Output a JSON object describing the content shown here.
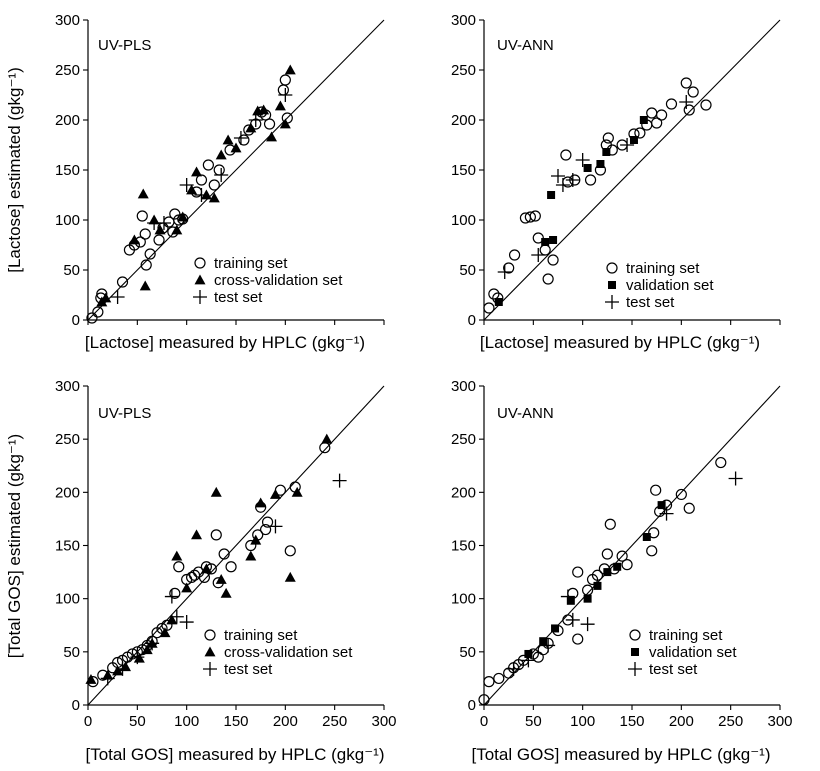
{
  "chart_data": [
    {
      "type": "scatter",
      "title": "UV-PLS",
      "xlabel": "[Lactose] measured by HPLC (gkg⁻¹)",
      "ylabel": "[Lactose]  estimated  (gkg⁻¹)",
      "xlim": [
        0,
        300
      ],
      "ylim": [
        0,
        300
      ],
      "xticks": [],
      "yticks": [
        "0",
        "50",
        "100",
        "150",
        "200",
        "250",
        "300"
      ],
      "grid": false,
      "legend_position": "bottom-right",
      "identity_line": true,
      "series": [
        {
          "name": "training set",
          "marker": "open-circle",
          "points": [
            [
              4,
              2
            ],
            [
              10,
              8
            ],
            [
              13,
              22
            ],
            [
              14,
              26
            ],
            [
              35,
              38
            ],
            [
              42,
              70
            ],
            [
              47,
              75
            ],
            [
              53,
              78
            ],
            [
              55,
              104
            ],
            [
              58,
              86
            ],
            [
              59,
              55
            ],
            [
              63,
              66
            ],
            [
              72,
              80
            ],
            [
              76,
              92
            ],
            [
              82,
              98
            ],
            [
              86,
              88
            ],
            [
              88,
              106
            ],
            [
              92,
              100
            ],
            [
              96,
              101
            ],
            [
              110,
              128
            ],
            [
              115,
              140
            ],
            [
              122,
              155
            ],
            [
              128,
              135
            ],
            [
              133,
              150
            ],
            [
              144,
              170
            ],
            [
              158,
              180
            ],
            [
              163,
              190
            ],
            [
              170,
              196
            ],
            [
              176,
              208
            ],
            [
              180,
              205
            ],
            [
              184,
              196
            ],
            [
              200,
              240
            ],
            [
              202,
              202
            ],
            [
              198,
              230
            ]
          ]
        },
        {
          "name": "cross-validation set",
          "marker": "filled-triangle",
          "points": [
            [
              14,
              18
            ],
            [
              18,
              22
            ],
            [
              47,
              80
            ],
            [
              56,
              126
            ],
            [
              58,
              34
            ],
            [
              67,
              100
            ],
            [
              73,
              90
            ],
            [
              90,
              90
            ],
            [
              96,
              103
            ],
            [
              105,
              130
            ],
            [
              110,
              148
            ],
            [
              120,
              125
            ],
            [
              128,
              122
            ],
            [
              135,
              165
            ],
            [
              142,
              180
            ],
            [
              150,
              172
            ],
            [
              165,
              192
            ],
            [
              172,
              209
            ],
            [
              178,
              210
            ],
            [
              186,
              183
            ],
            [
              195,
              214
            ],
            [
              200,
              196
            ],
            [
              205,
              250
            ]
          ]
        },
        {
          "name": "test set",
          "marker": "plus",
          "points": [
            [
              30,
              23
            ],
            [
              67,
              97
            ],
            [
              77,
              97
            ],
            [
              100,
              135
            ],
            [
              115,
              125
            ],
            [
              135,
              145
            ],
            [
              155,
              182
            ],
            [
              170,
              200
            ],
            [
              200,
              225
            ]
          ]
        }
      ]
    },
    {
      "type": "scatter",
      "title": "UV-ANN",
      "xlabel": "[Lactose] measured by HPLC (gkg⁻¹)",
      "ylabel": "",
      "xlim": [
        0,
        300
      ],
      "ylim": [
        0,
        300
      ],
      "xticks": [],
      "yticks": [
        "0",
        "50",
        "100",
        "150",
        "200",
        "250",
        "300"
      ],
      "grid": false,
      "legend_position": "bottom-right",
      "identity_line": true,
      "series": [
        {
          "name": "training set",
          "marker": "open-circle",
          "points": [
            [
              5,
              12
            ],
            [
              10,
              26
            ],
            [
              14,
              22
            ],
            [
              25,
              52
            ],
            [
              31,
              65
            ],
            [
              42,
              102
            ],
            [
              47,
              103
            ],
            [
              52,
              104
            ],
            [
              55,
              82
            ],
            [
              62,
              70
            ],
            [
              65,
              41
            ],
            [
              70,
              60
            ],
            [
              83,
              165
            ],
            [
              85,
              138
            ],
            [
              92,
              140
            ],
            [
              108,
              140
            ],
            [
              118,
              150
            ],
            [
              124,
              175
            ],
            [
              126,
              182
            ],
            [
              130,
              170
            ],
            [
              140,
              175
            ],
            [
              152,
              186
            ],
            [
              158,
              187
            ],
            [
              165,
              195
            ],
            [
              170,
              207
            ],
            [
              175,
              197
            ],
            [
              180,
              205
            ],
            [
              190,
              216
            ],
            [
              205,
              237
            ],
            [
              208,
              210
            ],
            [
              212,
              228
            ],
            [
              225,
              215
            ]
          ]
        },
        {
          "name": "validation set",
          "marker": "filled-square",
          "points": [
            [
              15,
              18
            ],
            [
              62,
              78
            ],
            [
              68,
              125
            ],
            [
              70,
              80
            ],
            [
              105,
              152
            ],
            [
              118,
              156
            ],
            [
              124,
              168
            ],
            [
              152,
              180
            ],
            [
              162,
              200
            ]
          ]
        },
        {
          "name": "test set",
          "marker": "plus",
          "points": [
            [
              21,
              48
            ],
            [
              55,
              65
            ],
            [
              75,
              144
            ],
            [
              80,
              135
            ],
            [
              90,
              140
            ],
            [
              100,
              160
            ],
            [
              145,
              175
            ],
            [
              205,
              218
            ]
          ]
        }
      ]
    },
    {
      "type": "scatter",
      "title": "UV-PLS",
      "xlabel": "[Total GOS] measured by HPLC (gkg⁻¹)",
      "ylabel": "[Total GOS] estimated (gkg⁻¹)",
      "xlim": [
        0,
        300
      ],
      "ylim": [
        0,
        300
      ],
      "xticks": [
        "0",
        "50",
        "100",
        "150",
        "200",
        "250",
        "300"
      ],
      "yticks": [
        "0",
        "50",
        "100",
        "150",
        "200",
        "250",
        "300"
      ],
      "grid": false,
      "legend_position": "bottom-right",
      "identity_line": true,
      "series": [
        {
          "name": "training  set",
          "marker": "open-circle",
          "points": [
            [
              5,
              22
            ],
            [
              15,
              28
            ],
            [
              25,
              35
            ],
            [
              30,
              40
            ],
            [
              35,
              42
            ],
            [
              40,
              45
            ],
            [
              45,
              48
            ],
            [
              50,
              50
            ],
            [
              55,
              52
            ],
            [
              60,
              56
            ],
            [
              65,
              60
            ],
            [
              70,
              68
            ],
            [
              75,
              72
            ],
            [
              80,
              75
            ],
            [
              88,
              105
            ],
            [
              92,
              130
            ],
            [
              100,
              118
            ],
            [
              105,
              120
            ],
            [
              108,
              122
            ],
            [
              112,
              125
            ],
            [
              118,
              120
            ],
            [
              120,
              130
            ],
            [
              125,
              128
            ],
            [
              130,
              160
            ],
            [
              132,
              115
            ],
            [
              138,
              142
            ],
            [
              145,
              130
            ],
            [
              165,
              150
            ],
            [
              172,
              160
            ],
            [
              175,
              186
            ],
            [
              180,
              165
            ],
            [
              182,
              172
            ],
            [
              195,
              202
            ],
            [
              205,
              145
            ],
            [
              210,
              205
            ],
            [
              240,
              242
            ]
          ]
        },
        {
          "name": "cross-validation set",
          "marker": "filled-triangle",
          "points": [
            [
              3,
              24
            ],
            [
              20,
              28
            ],
            [
              30,
              32
            ],
            [
              38,
              36
            ],
            [
              52,
              44
            ],
            [
              60,
              52
            ],
            [
              65,
              58
            ],
            [
              78,
              68
            ],
            [
              85,
              80
            ],
            [
              90,
              140
            ],
            [
              100,
              110
            ],
            [
              110,
              160
            ],
            [
              120,
              128
            ],
            [
              130,
              200
            ],
            [
              135,
              118
            ],
            [
              140,
              105
            ],
            [
              165,
              140
            ],
            [
              170,
              155
            ],
            [
              175,
              190
            ],
            [
              190,
              198
            ],
            [
              205,
              120
            ],
            [
              212,
              200
            ],
            [
              242,
              250
            ]
          ]
        },
        {
          "name": "test set",
          "marker": "plus",
          "points": [
            [
              20,
              25
            ],
            [
              35,
              34
            ],
            [
              50,
              45
            ],
            [
              65,
              58
            ],
            [
              85,
              102
            ],
            [
              90,
              83
            ],
            [
              100,
              78
            ],
            [
              190,
              168
            ],
            [
              255,
              211
            ]
          ]
        }
      ]
    },
    {
      "type": "scatter",
      "title": "UV-ANN",
      "xlabel": "[Total GOS] measured by HPLC (gkg⁻¹)",
      "ylabel": "",
      "xlim": [
        0,
        300
      ],
      "ylim": [
        0,
        300
      ],
      "xticks": [
        "0",
        "50",
        "100",
        "150",
        "200",
        "250",
        "300"
      ],
      "yticks": [
        "0",
        "50",
        "100",
        "150",
        "200",
        "250",
        "300"
      ],
      "grid": false,
      "legend_position": "bottom-right",
      "identity_line": true,
      "series": [
        {
          "name": "training set",
          "marker": "open-circle",
          "points": [
            [
              0,
              5
            ],
            [
              5,
              22
            ],
            [
              15,
              25
            ],
            [
              25,
              30
            ],
            [
              30,
              35
            ],
            [
              35,
              38
            ],
            [
              40,
              42
            ],
            [
              50,
              48
            ],
            [
              55,
              45
            ],
            [
              60,
              52
            ],
            [
              65,
              58
            ],
            [
              75,
              70
            ],
            [
              85,
              80
            ],
            [
              90,
              105
            ],
            [
              95,
              125
            ],
            [
              95,
              62
            ],
            [
              105,
              108
            ],
            [
              110,
              118
            ],
            [
              115,
              122
            ],
            [
              122,
              128
            ],
            [
              125,
              142
            ],
            [
              128,
              170
            ],
            [
              132,
              128
            ],
            [
              140,
              140
            ],
            [
              145,
              132
            ],
            [
              170,
              145
            ],
            [
              172,
              162
            ],
            [
              174,
              202
            ],
            [
              178,
              182
            ],
            [
              185,
              188
            ],
            [
              200,
              198
            ],
            [
              208,
              185
            ],
            [
              240,
              228
            ]
          ]
        },
        {
          "name": "validation set",
          "marker": "filled-square",
          "points": [
            [
              45,
              48
            ],
            [
              60,
              60
            ],
            [
              72,
              72
            ],
            [
              88,
              98
            ],
            [
              105,
              100
            ],
            [
              115,
              112
            ],
            [
              125,
              125
            ],
            [
              135,
              130
            ],
            [
              165,
              158
            ],
            [
              180,
              188
            ]
          ]
        },
        {
          "name": "test set",
          "marker": "plus",
          "points": [
            [
              30,
              34
            ],
            [
              45,
              42
            ],
            [
              65,
              56
            ],
            [
              85,
              102
            ],
            [
              90,
              80
            ],
            [
              105,
              76
            ],
            [
              185,
              180
            ],
            [
              255,
              213
            ]
          ]
        }
      ]
    }
  ]
}
